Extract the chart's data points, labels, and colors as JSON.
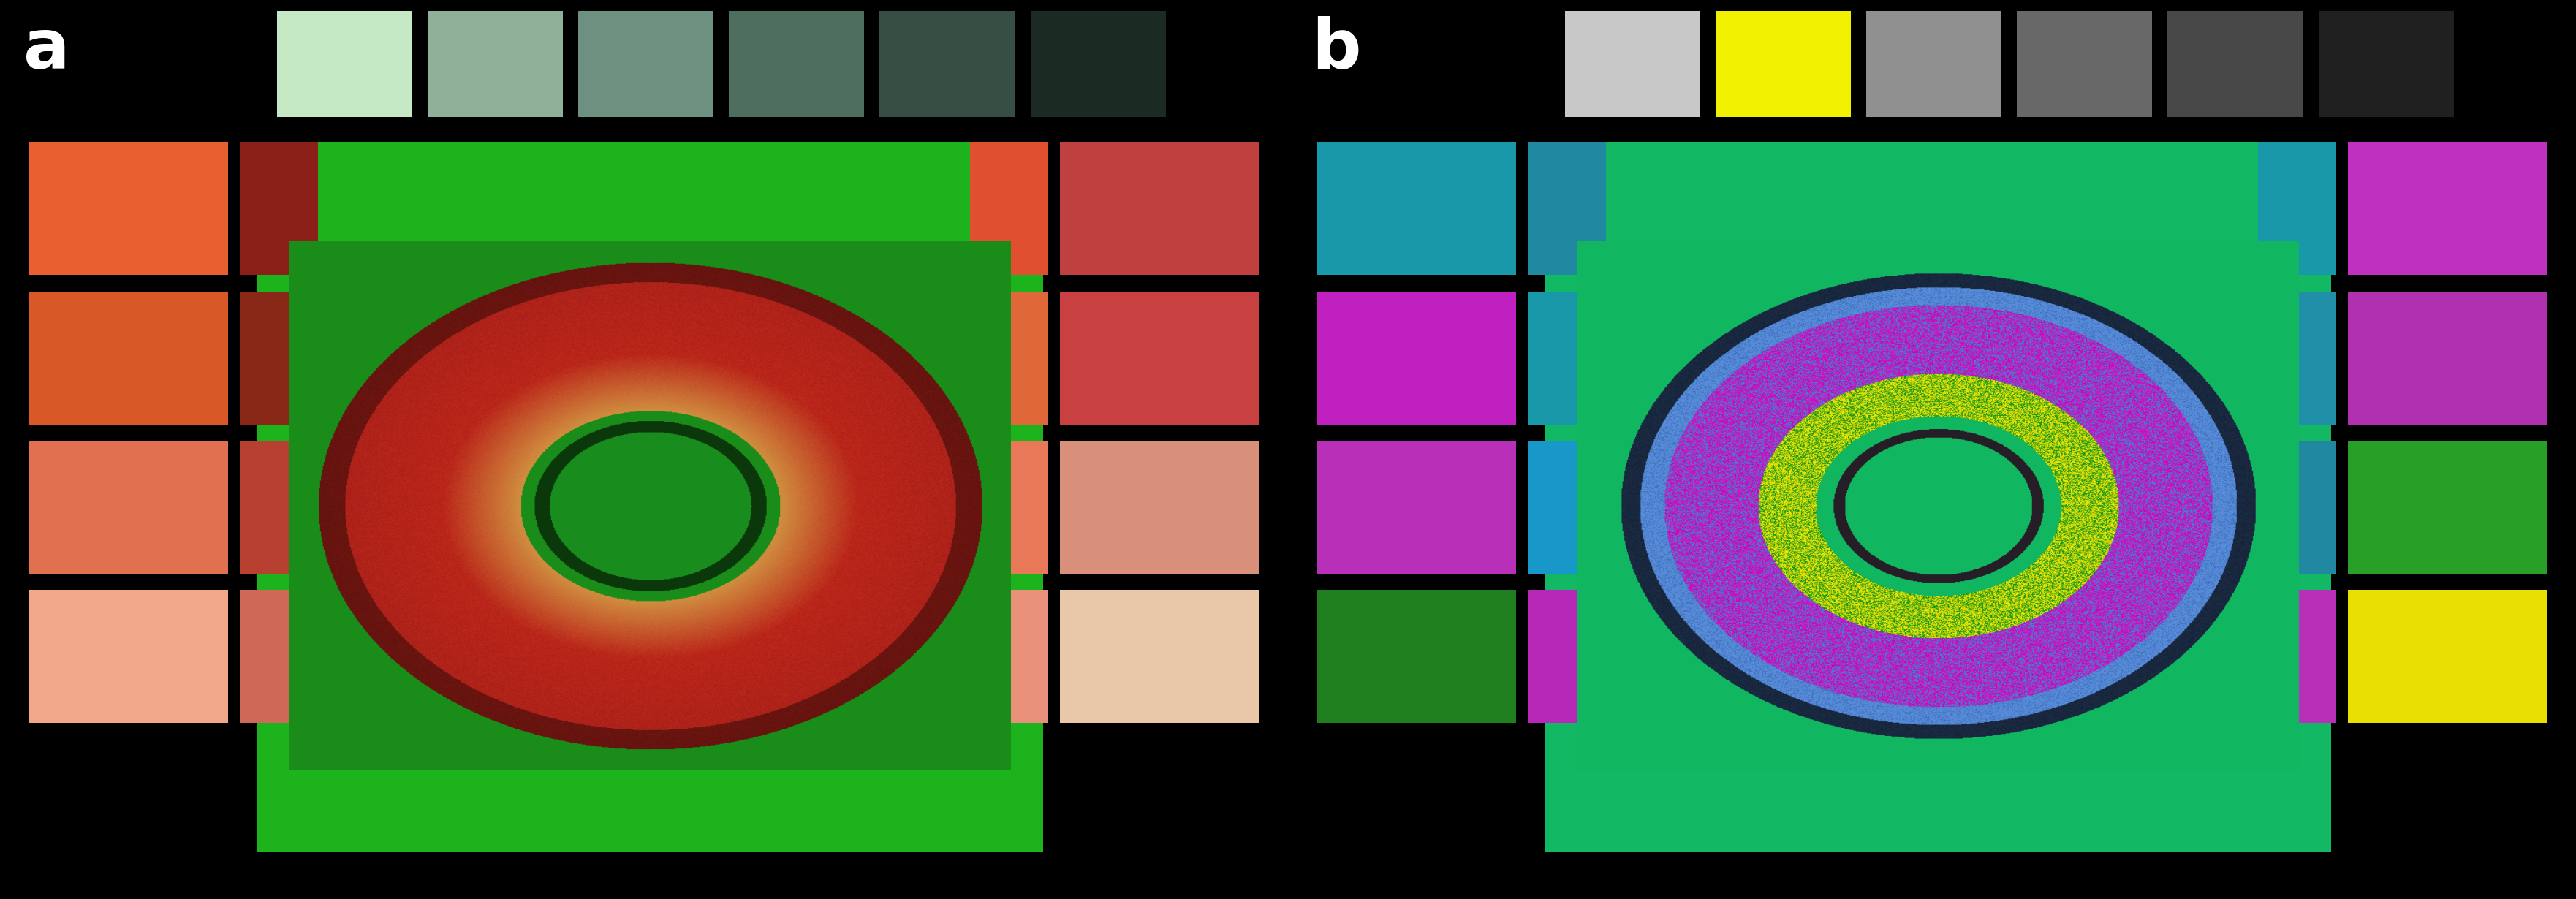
{
  "fig_width": 35.24,
  "fig_height": 12.3,
  "bg_color": "#000000",
  "label_a": "a",
  "label_b": "b",
  "panel_a": {
    "green_bg": "#1db31d",
    "top_swatches": [
      "#c5e8c5",
      "#90b09a",
      "#6e9080",
      "#4e6e60",
      "#364e44",
      "#1c2a24"
    ],
    "left_swatches": [
      [
        "#e86030",
        "#8a2018"
      ],
      [
        "#d85828",
        "#8a2818"
      ],
      [
        "#e07050",
        "#b84030"
      ],
      [
        "#f0a888",
        "#d06858"
      ]
    ],
    "right_swatches": [
      [
        "#e05030",
        "#c04040"
      ],
      [
        "#e06838",
        "#c84040"
      ],
      [
        "#e87858",
        "#d8907a"
      ],
      [
        "#e8907a",
        "#e8c8a8"
      ]
    ]
  },
  "panel_b": {
    "green_bg": "#12b864",
    "top_swatches": [
      "#c8c8c8",
      "#f0f000",
      "#909090",
      "#686868",
      "#484848",
      "#202020"
    ],
    "left_swatches": [
      [
        "#1898a8",
        "#2088a0"
      ],
      [
        "#c020c0",
        "#1898a8"
      ],
      [
        "#b830b8",
        "#1898c8"
      ],
      [
        "#1f7f1f",
        "#b828b8"
      ]
    ],
    "right_swatches": [
      [
        "#1898a8",
        "#c030c0"
      ],
      [
        "#2090a8",
        "#b030b0"
      ],
      [
        "#2088a0",
        "#28a028"
      ],
      [
        "#b830b8",
        "#e8e000"
      ]
    ]
  }
}
